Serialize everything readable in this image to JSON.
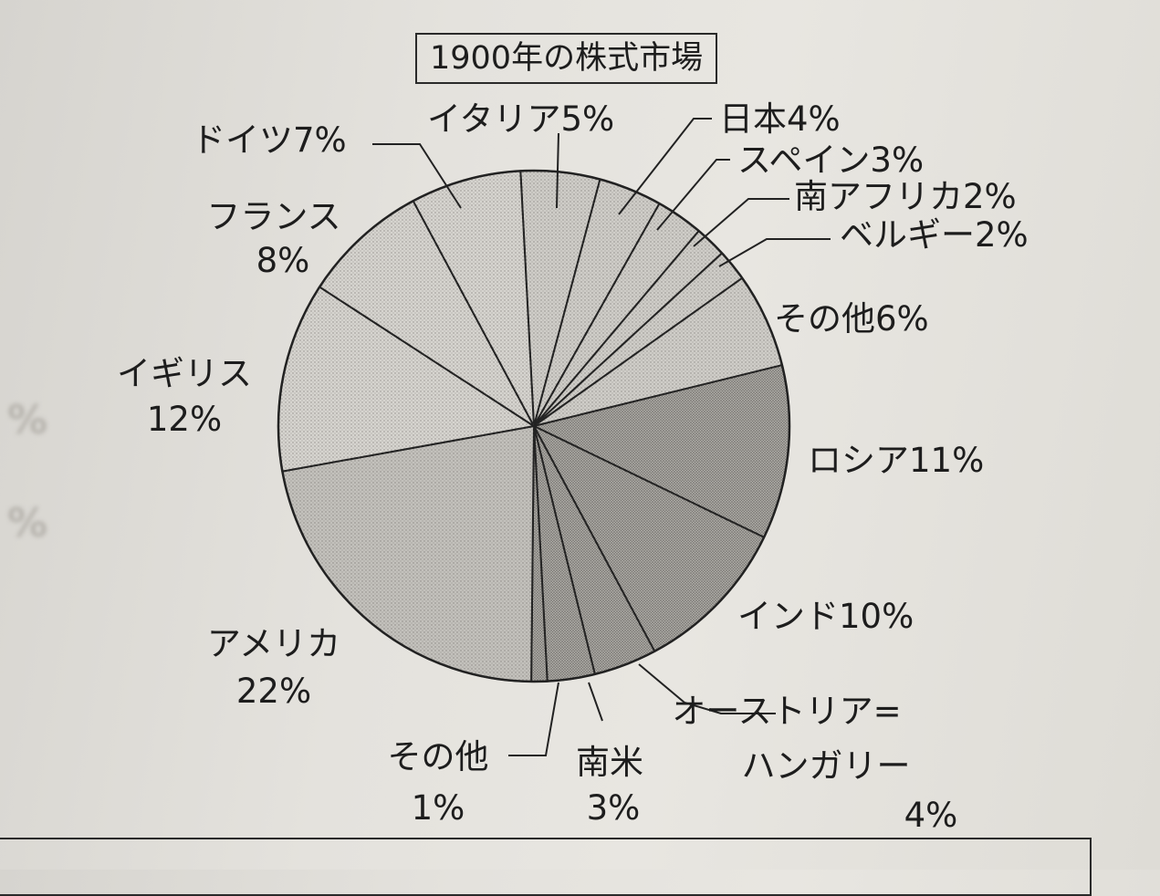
{
  "chart_data": {
    "type": "pie",
    "title": "1900年の株式市場",
    "slices": [
      {
        "name": "イタリア",
        "value": 5,
        "label": [
          "イタリア5%"
        ],
        "fill": "#cfcdc8"
      },
      {
        "name": "日本",
        "value": 4,
        "label": [
          "日本4%"
        ],
        "fill": "#cfcdc8"
      },
      {
        "name": "スペイン",
        "value": 3,
        "label": [
          "スペイン3%"
        ],
        "fill": "#cfcdc8"
      },
      {
        "name": "南アフリカ",
        "value": 2,
        "label": [
          "南アフリカ2%"
        ],
        "fill": "#cfcdc8"
      },
      {
        "name": "ベルギー",
        "value": 2,
        "label": [
          "ベルギー2%"
        ],
        "fill": "#cfcdc8"
      },
      {
        "name": "その他",
        "value": 6,
        "label": [
          "その他6%"
        ],
        "fill": "#cfcdc8"
      },
      {
        "name": "ロシア",
        "value": 11,
        "label": [
          "ロシア11%"
        ],
        "fill": "#a9a7a2"
      },
      {
        "name": "インド",
        "value": 10,
        "label": [
          "インド10%"
        ],
        "fill": "#a9a7a2"
      },
      {
        "name": "オーストリア=ハンガリー",
        "value": 4,
        "label": [
          "オーストリア=",
          "ハンガリー",
          "4%"
        ],
        "fill": "#a9a7a2"
      },
      {
        "name": "南米",
        "value": 3,
        "label": [
          "南米",
          "3%"
        ],
        "fill": "#a9a7a2"
      },
      {
        "name": "その他",
        "value": 1,
        "label": [
          "その他",
          "1%"
        ],
        "fill": "#a9a7a2"
      },
      {
        "name": "アメリカ",
        "value": 22,
        "label": [
          "アメリカ",
          "22%"
        ],
        "fill": "#c3c1bc"
      },
      {
        "name": "イギリス",
        "value": 12,
        "label": [
          "イギリス",
          "12%"
        ],
        "fill": "#d6d4cf"
      },
      {
        "name": "フランス",
        "value": 8,
        "label": [
          "フランス",
          "8%"
        ],
        "fill": "#d6d4cf"
      },
      {
        "name": "ドイツ",
        "value": 7,
        "label": [
          "ドイツ7%"
        ],
        "fill": "#d6d4cf"
      }
    ]
  },
  "background_text": [
    "%",
    "%"
  ]
}
